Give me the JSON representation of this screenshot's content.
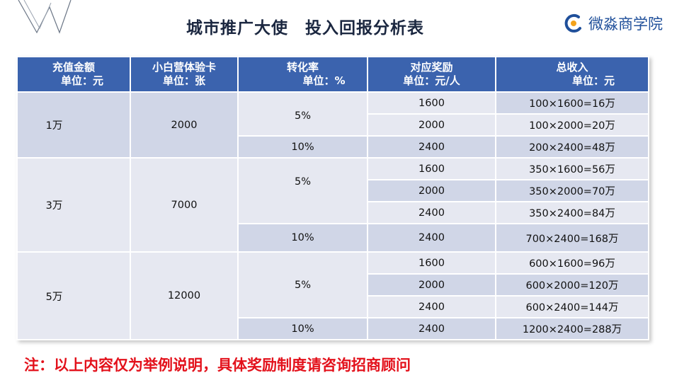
{
  "title": "城市推广大使　投入回报分析表",
  "brand": {
    "name": "微淼商学院",
    "icon": "brand-c-logo-icon",
    "color": "#1f4f9a",
    "accent": "#f3a21b"
  },
  "logo": {
    "icon": "w-logo-icon"
  },
  "table": {
    "headers": [
      {
        "line1": "充值金额",
        "line2": "单位：元"
      },
      {
        "line1": "小白营体验卡",
        "line2": "单位：张"
      },
      {
        "line1": "转化率",
        "line2": "单位：%"
      },
      {
        "line1": "对应奖励",
        "line2": "单位：元/人"
      },
      {
        "line1": "总收入",
        "line2": "单位：元"
      }
    ],
    "groups": [
      {
        "amount": "1万",
        "cards": "2000",
        "rates": [
          {
            "rate": "5%",
            "rows": [
              {
                "reward": "1600",
                "total": "100×1600=16万"
              },
              {
                "reward": "2000",
                "total": "100×2000=20万"
              }
            ]
          },
          {
            "rate": "10%",
            "rows": [
              {
                "reward": "2400",
                "total": "200×2400=48万"
              }
            ]
          }
        ]
      },
      {
        "amount": "3万",
        "cards": "7000",
        "rates": [
          {
            "rate": "5%",
            "rows": [
              {
                "reward": "1600",
                "total": "350×1600=56万"
              },
              {
                "reward": "2000",
                "total": "350×2000=70万"
              },
              {
                "reward": "2400",
                "total": "350×2400=84万"
              }
            ]
          },
          {
            "rate": "10%",
            "rows": [
              {
                "reward": "2400",
                "total": "700×2400=168万"
              }
            ]
          }
        ]
      },
      {
        "amount": "5万",
        "cards": "12000",
        "rates": [
          {
            "rate": "5%",
            "rows": [
              {
                "reward": "1600",
                "total": "600×1600=96万"
              },
              {
                "reward": "2000",
                "total": "600×2000=120万"
              },
              {
                "reward": "2400",
                "total": "600×2400=144万"
              }
            ]
          },
          {
            "rate": "10%",
            "rows": [
              {
                "reward": "2400",
                "total": "1200×2400=288万"
              }
            ]
          }
        ]
      }
    ]
  },
  "note": "注：以上内容仅为举例说明，具体奖励制度请咨询招商顾问"
}
